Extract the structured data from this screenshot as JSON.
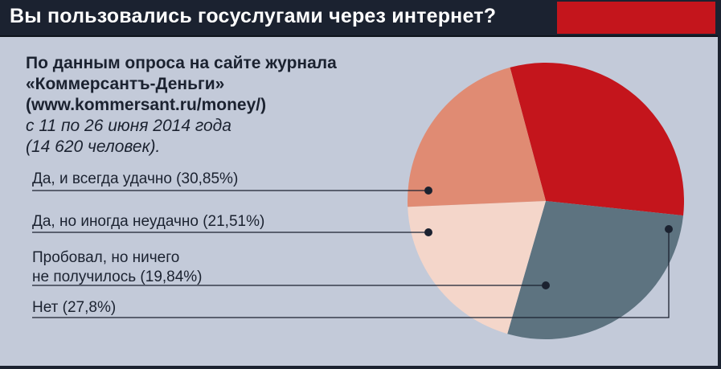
{
  "title": "Вы пользовались госуслугами через интернет?",
  "source": {
    "line1": "По данным опроса на сайте журнала",
    "line2": "«Коммерсантъ-Деньги»",
    "line3": "(www.kommersant.ru/money/)",
    "line4": "с 11  по 26 июня 2014 года",
    "line5": "(14 620 человек)."
  },
  "labels": {
    "yes_always": "Да, и всегда удачно (30,85%)",
    "yes_sometimes": "Да, но иногда неудачно (21,51%)",
    "tried_line1": "Пробовал, но ничего",
    "tried_line2": "не получилось (19,84%)",
    "no": "Нет (27,8%)"
  },
  "colors": {
    "background": "#c3cad9",
    "header": "#1b2230",
    "accent": "#c4151c"
  },
  "chart_data": {
    "type": "pie",
    "title": "Вы пользовались госуслугами через интернет?",
    "unit": "%",
    "slices": [
      {
        "label": "Да, и всегда удачно",
        "value": 30.85,
        "color": "#c4151c"
      },
      {
        "label": "Нет",
        "value": 27.8,
        "color": "#5d7380"
      },
      {
        "label": "Пробовал, но ничего не получилось",
        "value": 19.84,
        "color": "#f4d6ca"
      },
      {
        "label": "Да, но иногда неудачно",
        "value": 21.51,
        "color": "#e08b73"
      }
    ]
  }
}
